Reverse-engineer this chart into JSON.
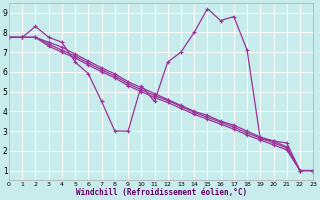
{
  "bg_color": "#c8ecec",
  "grid_color": "#b8dada",
  "line_color": "#993399",
  "xlim": [
    0,
    23
  ],
  "ylim": [
    0.5,
    9.5
  ],
  "xticks": [
    0,
    1,
    2,
    3,
    4,
    5,
    6,
    7,
    8,
    9,
    10,
    11,
    12,
    13,
    14,
    15,
    16,
    17,
    18,
    19,
    20,
    21,
    22,
    23
  ],
  "yticks": [
    1,
    2,
    3,
    4,
    5,
    6,
    7,
    8,
    9
  ],
  "xlabel": "Windchill (Refroidissement éolien,°C)",
  "series": [
    [
      7.75,
      7.75,
      8.3,
      7.75,
      7.5,
      6.5,
      5.9,
      4.5,
      3.0,
      3.0,
      5.3,
      4.5,
      6.5,
      7.0,
      8.0,
      9.2,
      8.6,
      8.8,
      7.1,
      2.6,
      2.5,
      2.4,
      1.0,
      1.0
    ],
    [
      7.75,
      7.75,
      7.75,
      7.5,
      7.25,
      6.9,
      6.55,
      6.2,
      5.9,
      5.5,
      5.2,
      4.9,
      4.6,
      4.3,
      4.0,
      3.8,
      3.5,
      3.3,
      3.0,
      2.7,
      2.5,
      2.2,
      1.0,
      1.0
    ],
    [
      7.75,
      7.75,
      7.75,
      7.4,
      7.1,
      6.8,
      6.45,
      6.1,
      5.8,
      5.4,
      5.1,
      4.8,
      4.55,
      4.25,
      3.95,
      3.7,
      3.45,
      3.2,
      2.9,
      2.65,
      2.4,
      2.15,
      1.0,
      1.0
    ],
    [
      7.75,
      7.75,
      7.75,
      7.3,
      7.0,
      6.7,
      6.35,
      6.0,
      5.7,
      5.3,
      5.0,
      4.7,
      4.45,
      4.15,
      3.85,
      3.6,
      3.35,
      3.1,
      2.8,
      2.55,
      2.3,
      2.05,
      1.0,
      1.0
    ]
  ]
}
